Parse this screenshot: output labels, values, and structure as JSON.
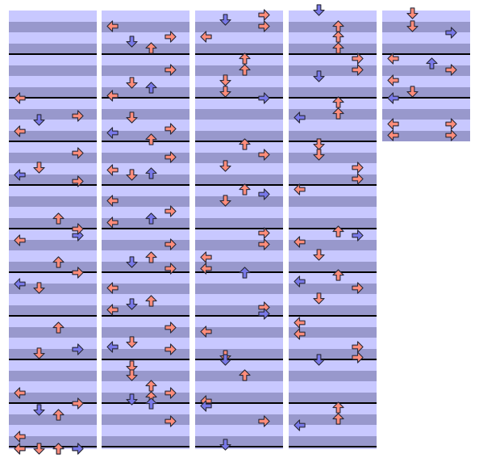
{
  "chart": {
    "type": "step-chart",
    "columns": 5,
    "lanes": [
      "left",
      "down",
      "up",
      "right"
    ],
    "colors": {
      "band_light": "#c8c8ff",
      "band_dark": "#9898cc",
      "measure_line": "#000000",
      "note_red": "#ff8c7a",
      "note_blue": "#7878e8",
      "note_outline": "#2a2a3a"
    },
    "measure_count": 37,
    "notes": [
      {
        "col": 0,
        "lane": "left",
        "beat": 2.0,
        "color": "red"
      },
      {
        "col": 0,
        "lane": "down",
        "beat": 2.5,
        "color": "blue"
      },
      {
        "col": 0,
        "lane": "right",
        "beat": 2.4,
        "color": "red"
      },
      {
        "col": 0,
        "lane": "left",
        "beat": 2.75,
        "color": "red"
      },
      {
        "col": 0,
        "lane": "right",
        "beat": 3.25,
        "color": "red"
      },
      {
        "col": 0,
        "lane": "left",
        "beat": 3.75,
        "color": "blue"
      },
      {
        "col": 0,
        "lane": "down",
        "beat": 3.6,
        "color": "red"
      },
      {
        "col": 0,
        "lane": "right",
        "beat": 3.9,
        "color": "red"
      },
      {
        "col": 0,
        "lane": "up",
        "beat": 4.75,
        "color": "red"
      },
      {
        "col": 0,
        "lane": "right",
        "beat": 5.15,
        "color": "blue"
      },
      {
        "col": 0,
        "lane": "left",
        "beat": 5.25,
        "color": "red"
      },
      {
        "col": 0,
        "lane": "right",
        "beat": 5.0,
        "color": "red"
      },
      {
        "col": 0,
        "lane": "up",
        "beat": 5.75,
        "color": "red"
      },
      {
        "col": 0,
        "lane": "right",
        "beat": 6.0,
        "color": "red"
      },
      {
        "col": 0,
        "lane": "left",
        "beat": 6.25,
        "color": "blue"
      },
      {
        "col": 0,
        "lane": "down",
        "beat": 6.35,
        "color": "red"
      },
      {
        "col": 0,
        "lane": "up",
        "beat": 7.25,
        "color": "red"
      },
      {
        "col": 0,
        "lane": "right",
        "beat": 7.75,
        "color": "blue"
      },
      {
        "col": 0,
        "lane": "down",
        "beat": 7.85,
        "color": "red"
      },
      {
        "col": 0,
        "lane": "left",
        "beat": 8.75,
        "color": "red"
      },
      {
        "col": 0,
        "lane": "down",
        "beat": 9.15,
        "color": "blue"
      },
      {
        "col": 0,
        "lane": "up",
        "beat": 9.25,
        "color": "red"
      },
      {
        "col": 0,
        "lane": "right",
        "beat": 9.0,
        "color": "red"
      },
      {
        "col": 0,
        "lane": "left",
        "beat": 9.75,
        "color": "red"
      },
      {
        "col": 0,
        "lane": "right",
        "beat": 10.1,
        "color": "blue"
      },
      {
        "col": 0,
        "lane": "left",
        "beat": 10.25,
        "color": "red"
      },
      {
        "col": 0,
        "lane": "up",
        "beat": 10.75,
        "color": "red"
      },
      {
        "col": 0,
        "lane": "right",
        "beat": 10.9,
        "color": "blue"
      },
      {
        "col": 0,
        "lane": "left",
        "beat": 11.0,
        "color": "red"
      },
      {
        "col": 0,
        "lane": "down",
        "beat": 11.25,
        "color": "red"
      },
      {
        "col": 0,
        "lane": "up",
        "beat": 11.5,
        "color": "red"
      }
    ]
  }
}
